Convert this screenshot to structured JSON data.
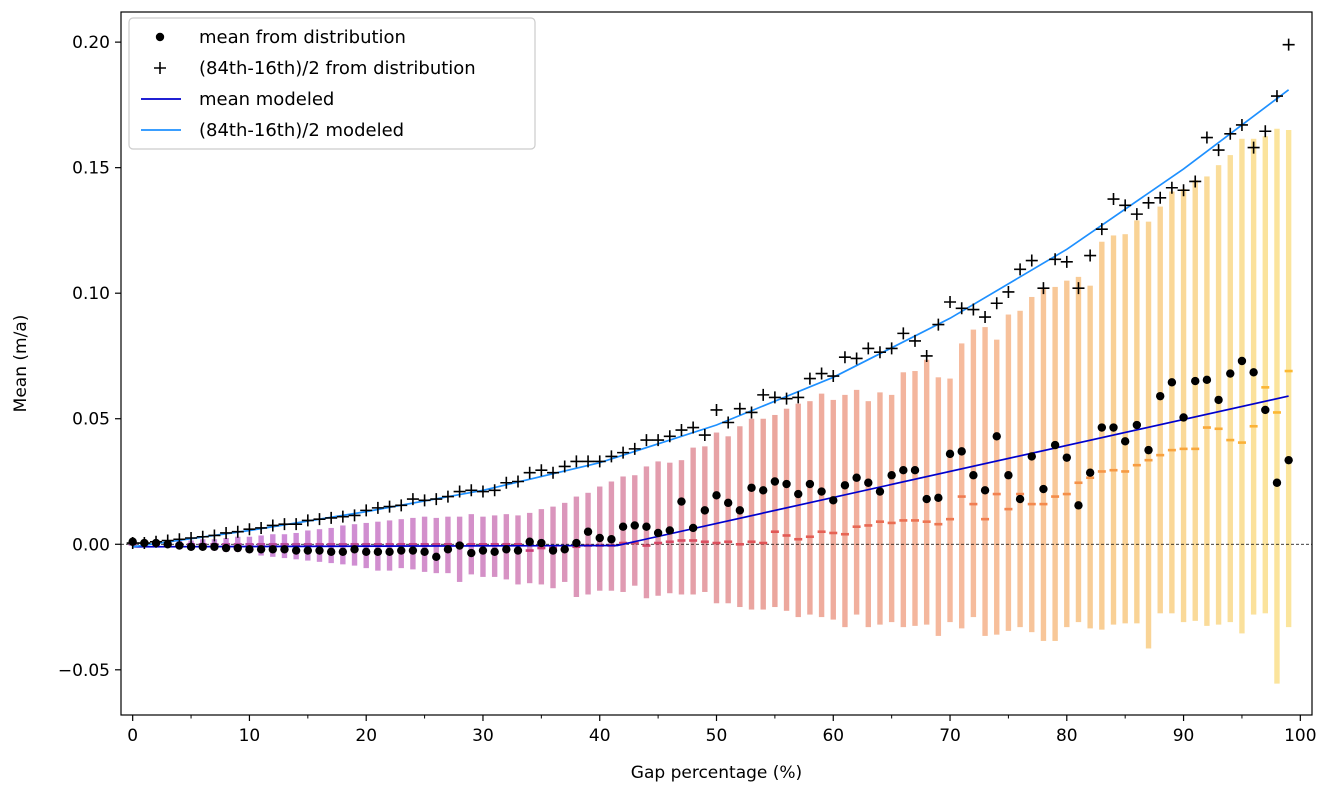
{
  "chart_data": {
    "type": "scatter",
    "title": "",
    "xlabel": "Gap percentage (%)",
    "ylabel": "Mean (m/a)",
    "xlim": [
      -1,
      101
    ],
    "ylim": [
      -0.068,
      0.212
    ],
    "xticks": [
      0,
      10,
      20,
      30,
      40,
      50,
      60,
      70,
      80,
      90,
      100
    ],
    "xtick_labels": [
      "0",
      "10",
      "20",
      "30",
      "40",
      "50",
      "60",
      "70",
      "80",
      "90",
      "100"
    ],
    "yticks": [
      -0.05,
      0.0,
      0.05,
      0.1,
      0.15,
      0.2
    ],
    "ytick_labels": [
      "−0.05",
      "0.00",
      "0.05",
      "0.10",
      "0.15",
      "0.20"
    ],
    "grid": false,
    "legend_position": "top-left",
    "zero_line": {
      "y": 0,
      "style": "dashed",
      "color": "#000000"
    },
    "x": [
      0,
      1,
      2,
      3,
      4,
      5,
      6,
      7,
      8,
      9,
      10,
      11,
      12,
      13,
      14,
      15,
      16,
      17,
      18,
      19,
      20,
      21,
      22,
      23,
      24,
      25,
      26,
      27,
      28,
      29,
      30,
      31,
      32,
      33,
      34,
      35,
      36,
      37,
      38,
      39,
      40,
      41,
      42,
      43,
      44,
      45,
      46,
      47,
      48,
      49,
      50,
      51,
      52,
      53,
      54,
      55,
      56,
      57,
      58,
      59,
      60,
      61,
      62,
      63,
      64,
      65,
      66,
      67,
      68,
      69,
      70,
      71,
      72,
      73,
      74,
      75,
      76,
      77,
      78,
      79,
      80,
      81,
      82,
      83,
      84,
      85,
      86,
      87,
      88,
      89,
      90,
      91,
      92,
      93,
      94,
      95,
      96,
      97,
      98,
      99
    ],
    "series": [
      {
        "name": "mean from distribution",
        "type": "scatter-dot",
        "color": "#000000",
        "values": [
          0.001,
          0.0005,
          0.0005,
          0.0,
          -0.0005,
          -0.001,
          -0.001,
          -0.001,
          -0.0015,
          -0.0015,
          -0.002,
          -0.002,
          -0.002,
          -0.002,
          -0.0025,
          -0.0025,
          -0.0025,
          -0.003,
          -0.003,
          -0.002,
          -0.003,
          -0.003,
          -0.003,
          -0.0025,
          -0.0025,
          -0.003,
          -0.005,
          -0.002,
          -0.0005,
          -0.0035,
          -0.0025,
          -0.003,
          -0.002,
          -0.0025,
          0.001,
          0.0005,
          -0.0025,
          -0.002,
          0.0005,
          0.005,
          0.0025,
          0.002,
          0.007,
          0.0075,
          0.007,
          0.0045,
          0.0055,
          0.017,
          0.0065,
          0.0135,
          0.0195,
          0.0165,
          0.0135,
          0.0225,
          0.0215,
          0.025,
          0.024,
          0.02,
          0.024,
          0.021,
          0.0175,
          0.0235,
          0.0265,
          0.0245,
          0.021,
          0.0275,
          0.0295,
          0.0295,
          0.018,
          0.0185,
          0.036,
          0.037,
          0.0275,
          0.0215,
          0.043,
          0.0275,
          0.018,
          0.035,
          0.022,
          0.0395,
          0.0345,
          0.0155,
          0.0285,
          0.0465,
          0.0465,
          0.041,
          0.0475,
          0.0375,
          0.059,
          0.0645,
          0.0505,
          0.065,
          0.0655,
          0.0575,
          0.068,
          0.073,
          0.0685,
          0.0535,
          0.0245,
          0.0335
        ]
      },
      {
        "name": "(84th-16th)/2 from distribution",
        "type": "scatter-plus",
        "color": "#000000",
        "values": [
          0.0005,
          0.0005,
          0.001,
          0.0015,
          0.002,
          0.0025,
          0.003,
          0.0035,
          0.0045,
          0.005,
          0.006,
          0.0065,
          0.0075,
          0.008,
          0.008,
          0.0095,
          0.01,
          0.0105,
          0.011,
          0.0115,
          0.0135,
          0.0145,
          0.015,
          0.0155,
          0.018,
          0.0175,
          0.018,
          0.019,
          0.021,
          0.0215,
          0.021,
          0.0215,
          0.0245,
          0.025,
          0.0285,
          0.0295,
          0.0285,
          0.031,
          0.033,
          0.033,
          0.033,
          0.035,
          0.0365,
          0.038,
          0.0415,
          0.0415,
          0.043,
          0.0455,
          0.0465,
          0.0435,
          0.0535,
          0.0485,
          0.054,
          0.0525,
          0.0595,
          0.0585,
          0.058,
          0.0585,
          0.066,
          0.068,
          0.067,
          0.0745,
          0.074,
          0.078,
          0.0765,
          0.078,
          0.084,
          0.081,
          0.075,
          0.0875,
          0.0965,
          0.094,
          0.0935,
          0.0905,
          0.096,
          0.1005,
          0.1095,
          0.113,
          0.102,
          0.1135,
          0.1125,
          0.102,
          0.115,
          0.1255,
          0.1375,
          0.135,
          0.1315,
          0.136,
          0.138,
          0.142,
          0.141,
          0.1445,
          0.162,
          0.157,
          0.1635,
          0.167,
          0.158,
          0.1645,
          0.1785,
          0.199
        ]
      },
      {
        "name": "mean modeled",
        "type": "line",
        "color": "#0000cd",
        "x": [
          0,
          41.5,
          99
        ],
        "values": [
          -0.001,
          -0.0005,
          0.059
        ]
      },
      {
        "name": "(84th-16th)/2 modeled",
        "type": "line",
        "color": "#1e90ff",
        "x": [
          0,
          10,
          20,
          30,
          40,
          50,
          60,
          70,
          80,
          90,
          99
        ],
        "values": [
          -0.001,
          0.0055,
          0.013,
          0.0215,
          0.0325,
          0.0475,
          0.0665,
          0.09,
          0.1175,
          0.1495,
          0.181
        ]
      },
      {
        "name": "percentile range",
        "type": "range-bars",
        "low": [
          0.0,
          -0.0005,
          -0.001,
          -0.001,
          -0.0015,
          -0.0015,
          -0.002,
          -0.0025,
          -0.003,
          -0.003,
          -0.0035,
          -0.0045,
          -0.005,
          -0.0055,
          -0.006,
          -0.0065,
          -0.007,
          -0.0075,
          -0.008,
          -0.0085,
          -0.0095,
          -0.0105,
          -0.0105,
          -0.0095,
          -0.01,
          -0.011,
          -0.0115,
          -0.0115,
          -0.015,
          -0.012,
          -0.013,
          -0.013,
          -0.014,
          -0.016,
          -0.0155,
          -0.016,
          -0.0175,
          -0.015,
          -0.021,
          -0.02,
          -0.0185,
          -0.0185,
          -0.019,
          -0.0165,
          -0.0215,
          -0.0205,
          -0.0195,
          -0.02,
          -0.02,
          -0.019,
          -0.0235,
          -0.0235,
          -0.025,
          -0.026,
          -0.026,
          -0.025,
          -0.0265,
          -0.029,
          -0.028,
          -0.029,
          -0.03,
          -0.033,
          -0.028,
          -0.033,
          -0.032,
          -0.031,
          -0.033,
          -0.0325,
          -0.032,
          -0.0365,
          -0.031,
          -0.0335,
          -0.029,
          -0.0365,
          -0.036,
          -0.0345,
          -0.033,
          -0.035,
          -0.0385,
          -0.0385,
          -0.033,
          -0.031,
          -0.0335,
          -0.034,
          -0.032,
          -0.0315,
          -0.0315,
          -0.0415,
          -0.0275,
          -0.0275,
          -0.031,
          -0.0305,
          -0.0325,
          -0.032,
          -0.031,
          -0.0355,
          -0.028,
          -0.0275,
          -0.0555,
          -0.033
        ],
        "high": [
          0.0005,
          0.0005,
          0.001,
          0.001,
          0.0015,
          0.0015,
          0.002,
          0.002,
          0.0025,
          0.003,
          0.003,
          0.0035,
          0.004,
          0.004,
          0.0045,
          0.0055,
          0.006,
          0.0065,
          0.0075,
          0.008,
          0.0085,
          0.009,
          0.0095,
          0.01,
          0.0105,
          0.011,
          0.0105,
          0.011,
          0.011,
          0.012,
          0.011,
          0.0115,
          0.012,
          0.0115,
          0.0125,
          0.014,
          0.015,
          0.0165,
          0.019,
          0.0205,
          0.023,
          0.025,
          0.027,
          0.0275,
          0.031,
          0.033,
          0.0325,
          0.0335,
          0.0385,
          0.039,
          0.0445,
          0.043,
          0.047,
          0.05,
          0.05,
          0.0515,
          0.054,
          0.056,
          0.057,
          0.06,
          0.0575,
          0.0595,
          0.0615,
          0.057,
          0.0605,
          0.0595,
          0.0685,
          0.069,
          0.0735,
          0.0665,
          0.066,
          0.08,
          0.0855,
          0.0865,
          0.0815,
          0.0915,
          0.093,
          0.0985,
          0.102,
          0.1025,
          0.105,
          0.1065,
          0.103,
          0.1205,
          0.123,
          0.1235,
          0.129,
          0.1285,
          0.1345,
          0.1405,
          0.1415,
          0.145,
          0.1465,
          0.151,
          0.155,
          0.1615,
          0.1615,
          0.1625,
          0.1655,
          0.165
        ]
      },
      {
        "name": "median",
        "type": "tick-marks",
        "values": [
          0.0,
          0.0,
          0.0,
          0.0,
          0.0,
          0.0,
          0.0,
          0.0,
          0.0,
          0.0,
          0.0,
          0.0,
          0.0,
          0.0,
          0.0,
          0.0,
          0.0,
          0.0,
          0.0,
          0.0,
          0.0,
          0.0,
          0.0,
          0.0,
          0.0,
          0.0,
          0.0,
          0.0,
          0.0,
          0.0,
          0.0,
          0.0,
          0.0,
          0.0,
          -0.0025,
          -0.0015,
          -0.0015,
          -0.002,
          -0.001,
          -0.0005,
          -0.0005,
          -0.0005,
          0.0005,
          0.0005,
          -0.0005,
          0.0005,
          0.001,
          0.0015,
          0.0015,
          0.001,
          0.0005,
          0.001,
          0.0,
          0.001,
          0.0005,
          0.005,
          0.0035,
          0.002,
          0.003,
          0.005,
          0.0045,
          0.004,
          0.007,
          0.0075,
          0.009,
          0.0085,
          0.0095,
          0.0095,
          0.009,
          0.008,
          0.01,
          0.019,
          0.016,
          0.01,
          0.02,
          0.014,
          0.02,
          0.016,
          0.016,
          0.019,
          0.02,
          0.0245,
          0.0265,
          0.029,
          0.0295,
          0.029,
          0.0315,
          0.0335,
          0.0355,
          0.0375,
          0.038,
          0.038,
          0.0465,
          0.046,
          0.0415,
          0.0405,
          0.047,
          0.0625,
          0.0525,
          0.069
        ]
      }
    ]
  }
}
